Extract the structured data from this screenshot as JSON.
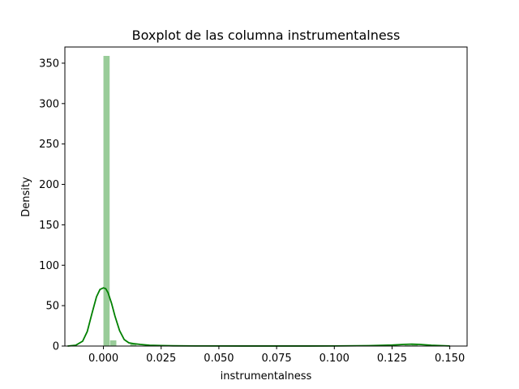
{
  "chart_data": {
    "type": "bar",
    "subtype": "histogram-with-kde",
    "title": "Boxplot de las columna instrumentalness",
    "xlabel": "instrumentalness",
    "ylabel": "Density",
    "xlim": [
      -0.0167,
      0.1575
    ],
    "ylim": [
      0,
      370
    ],
    "xticks": [
      0.0,
      0.025,
      0.05,
      0.075,
      0.1,
      0.125,
      0.15
    ],
    "xtick_labels": [
      "0.000",
      "0.025",
      "0.050",
      "0.075",
      "0.100",
      "0.125",
      "0.150"
    ],
    "yticks": [
      0,
      50,
      100,
      150,
      200,
      250,
      300,
      350
    ],
    "ytick_labels": [
      "0",
      "50",
      "100",
      "150",
      "200",
      "250",
      "300",
      "350"
    ],
    "grid": false,
    "colors": {
      "bars": "#99cc99",
      "kde": "#008000"
    },
    "bins": [
      {
        "x0": 0.0,
        "x1": 0.0029,
        "density": 359
      },
      {
        "x0": 0.0029,
        "x1": 0.0058,
        "density": 7
      },
      {
        "x0": 0.0116,
        "x1": 0.0145,
        "density": 3
      },
      {
        "x0": 0.1305,
        "x1": 0.1334,
        "density": 1
      },
      {
        "x0": 0.1334,
        "x1": 0.1363,
        "density": 2
      }
    ],
    "kde": {
      "x": [
        -0.0155,
        -0.012,
        -0.009,
        -0.007,
        -0.005,
        -0.003,
        -0.0015,
        0.0,
        0.001,
        0.002,
        0.0035,
        0.005,
        0.007,
        0.009,
        0.011,
        0.013,
        0.016,
        0.02,
        0.025,
        0.03,
        0.04,
        0.06,
        0.08,
        0.1,
        0.115,
        0.125,
        0.13,
        0.1335,
        0.137,
        0.142,
        0.15
      ],
      "y": [
        0,
        1,
        6,
        18,
        40,
        61,
        70,
        72,
        71,
        66,
        53,
        37,
        19,
        8,
        4,
        3,
        2,
        1,
        0.6,
        0.3,
        0.1,
        0.05,
        0.05,
        0.1,
        0.5,
        1.2,
        2.0,
        2.4,
        2.0,
        1.0,
        0.1
      ]
    }
  }
}
